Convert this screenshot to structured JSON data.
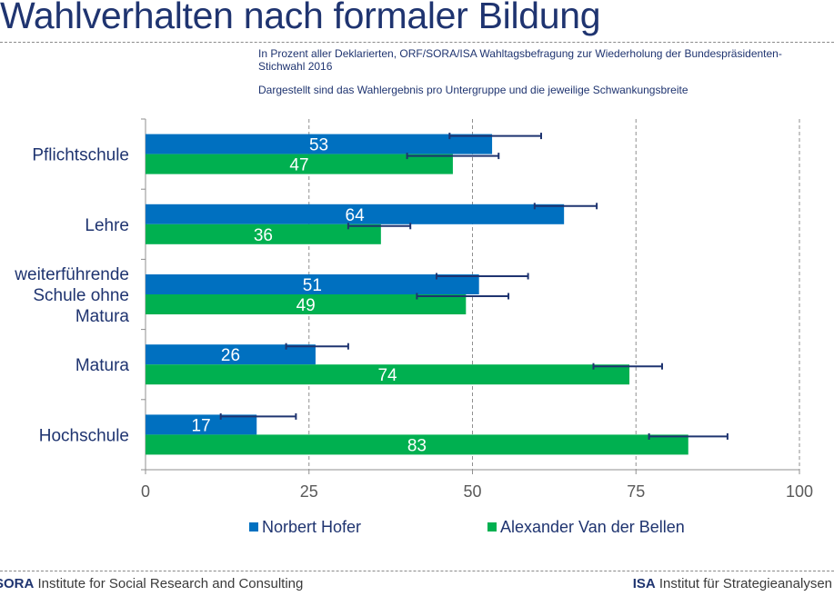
{
  "header": {
    "title": "Wahlverhalten nach formaler Bildung",
    "subtitle": "In Prozent aller Deklarierten, ORF/SORA/ISA Wahltagsbefragung zur Wiederholung der Bundespräsidenten-Stichwahl 2016",
    "note": "Dargestellt sind das Wahlergebnis pro Untergruppe und die jeweilige Schwankungsbreite"
  },
  "footer": {
    "left_brand": "SORA",
    "left_text": "Institute for Social Research and Consulting",
    "right_brand": "ISA",
    "right_text": "Institut für Strategieanalysen"
  },
  "colors": {
    "hofer": "#0070c0",
    "vdb": "#00b050",
    "error": "#1f3470",
    "text": "#1f3470"
  },
  "chart_data": {
    "type": "bar",
    "orientation": "horizontal",
    "categories": [
      "Pflichtschule",
      "Lehre",
      "weiterführende Schule ohne Matura",
      "Matura",
      "Hochschule"
    ],
    "category_lines": [
      [
        "Pflichtschule"
      ],
      [
        "Lehre"
      ],
      [
        "weiterführende",
        "Schule ohne",
        "Matura"
      ],
      [
        "Matura"
      ],
      [
        "Hochschule"
      ]
    ],
    "series": [
      {
        "name": "Norbert Hofer",
        "values": [
          53,
          64,
          51,
          26,
          17
        ],
        "error_low": [
          46.5,
          59.5,
          44.5,
          21.5,
          11.5
        ],
        "error_high": [
          60.5,
          69,
          58.5,
          31,
          23
        ]
      },
      {
        "name": "Alexander Van der Bellen",
        "values": [
          47,
          36,
          49,
          74,
          83
        ],
        "error_low": [
          40,
          31,
          41.5,
          68.5,
          77
        ],
        "error_high": [
          54,
          40.5,
          55.5,
          79,
          89
        ]
      }
    ],
    "xlim": [
      0,
      100
    ],
    "xticks": [
      0,
      25,
      50,
      75,
      100
    ],
    "grid": "vertical dashed",
    "legend": "bottom"
  }
}
